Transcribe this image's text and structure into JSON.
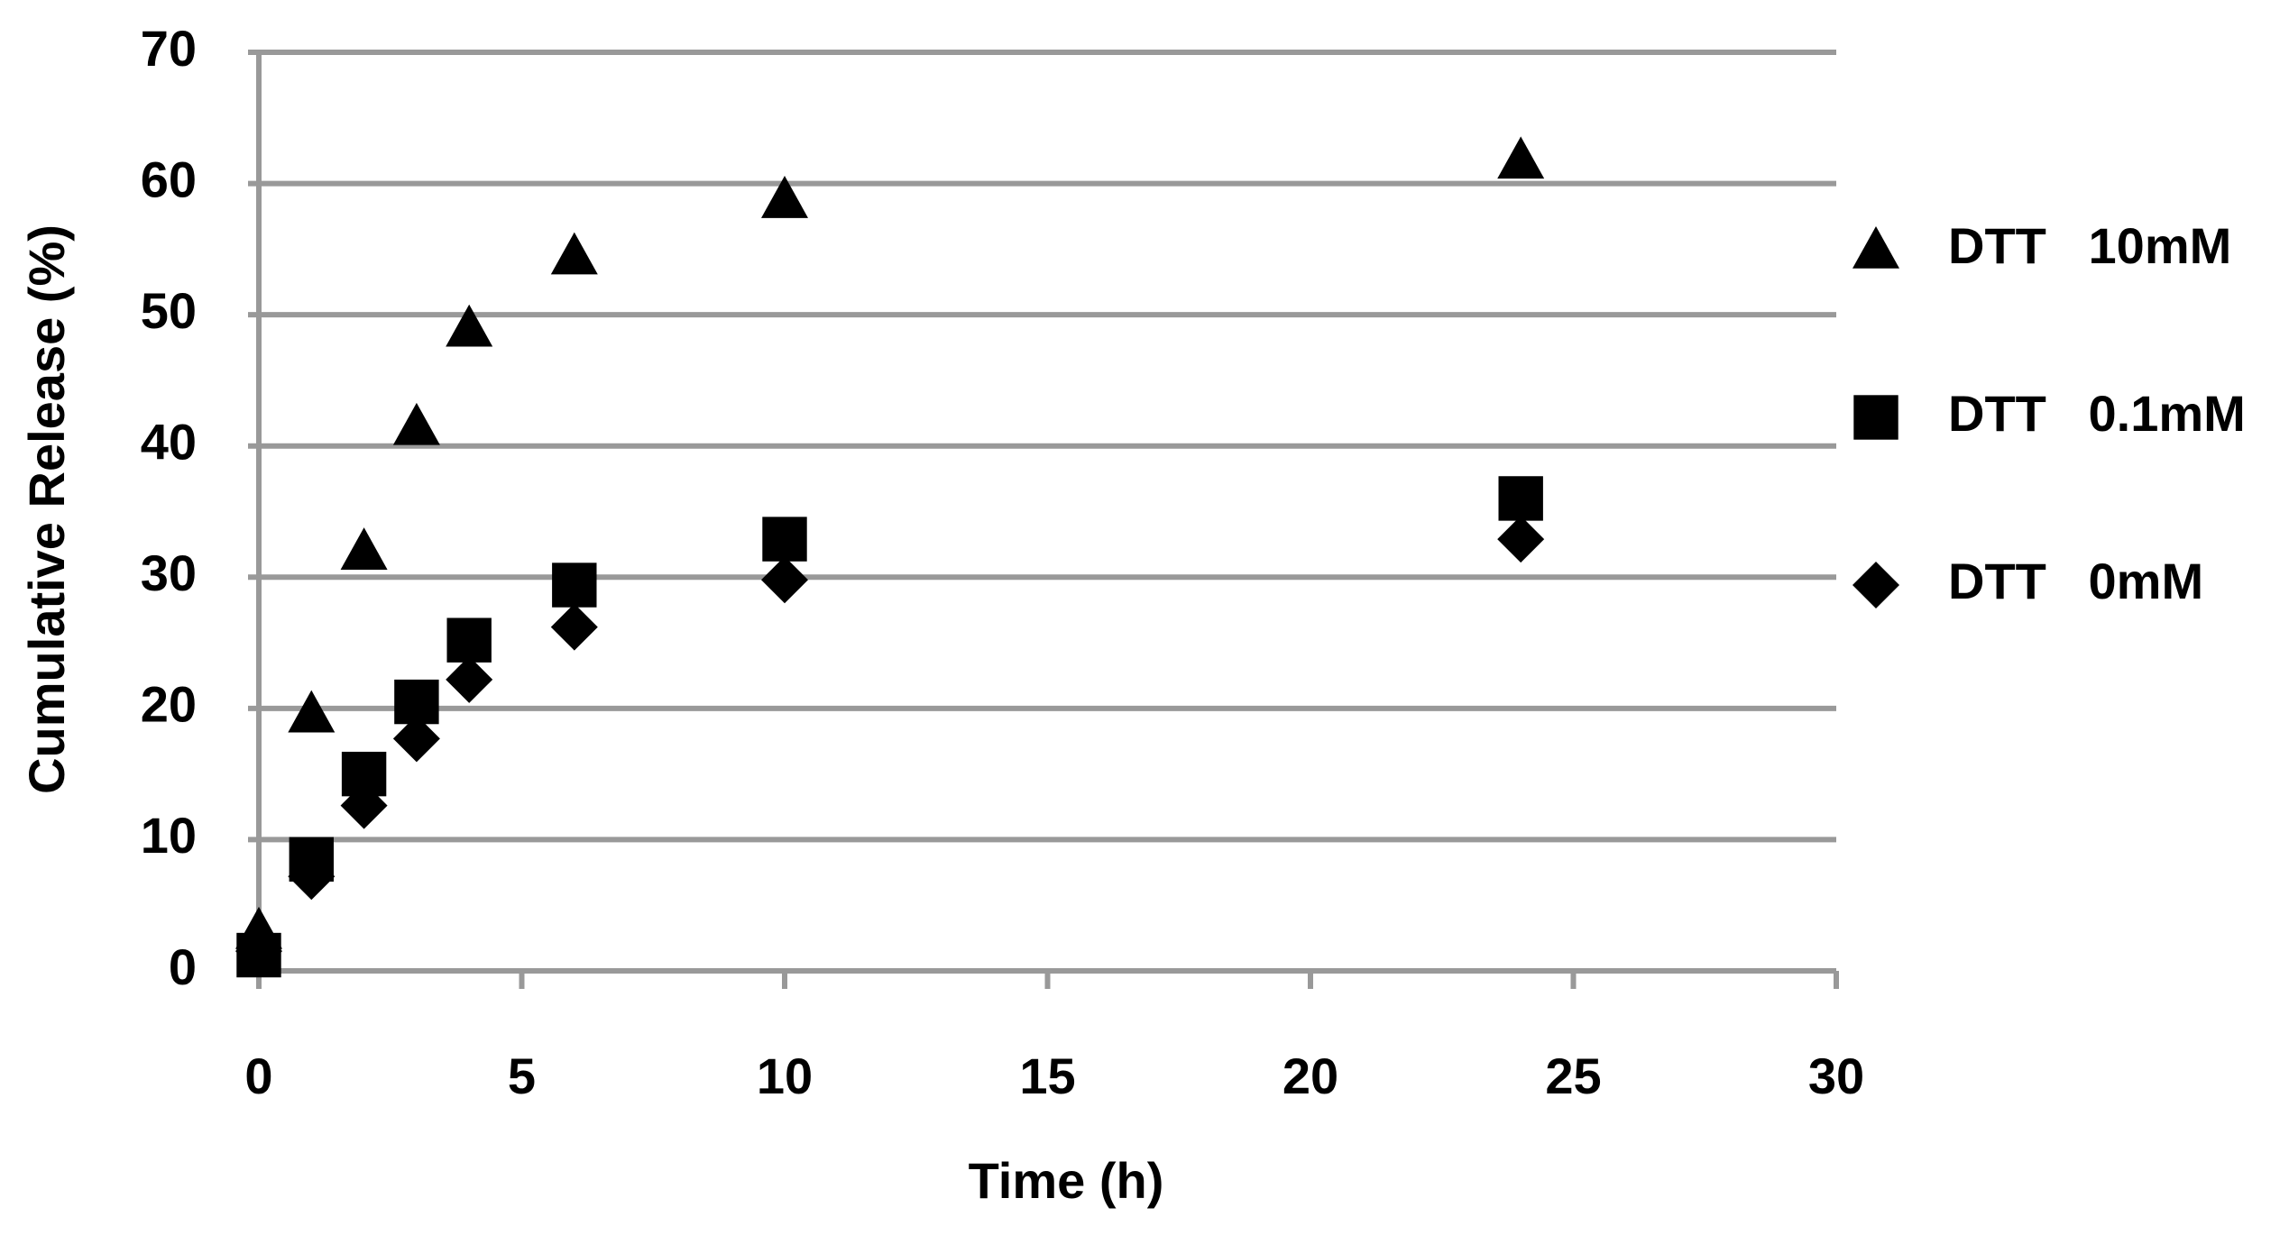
{
  "chart_data": {
    "type": "scatter",
    "x_label": "Time (h)",
    "y_label": "Cumulative Release (%)",
    "x": [
      0,
      1,
      2,
      3,
      4,
      6,
      10,
      24
    ],
    "series": [
      {
        "name": "DTT   10mM",
        "color": "#000000",
        "marker": "triangle",
        "values": [
          3.1,
          19.6,
          32,
          41.5,
          49,
          54.5,
          58.8,
          61.8
        ]
      },
      {
        "name": "DTT   0.1mM",
        "color": "#000000",
        "marker": "square",
        "values": [
          1.2,
          8.5,
          15,
          20.5,
          25.2,
          29.4,
          32.9,
          36
        ]
      },
      {
        "name": "DTT   0mM",
        "color": "#000000",
        "marker": "diamond",
        "values": [
          1.5,
          7.2,
          12.6,
          17.7,
          22.2,
          26.2,
          29.8,
          32.9
        ]
      }
    ],
    "xlim": [
      0,
      30
    ],
    "xticks": [
      0,
      5,
      10,
      15,
      20,
      25,
      30
    ],
    "ylim": [
      0,
      70
    ],
    "yticks": [
      0,
      10,
      20,
      30,
      40,
      50,
      60,
      70
    ],
    "grid": true,
    "legend": "right"
  }
}
